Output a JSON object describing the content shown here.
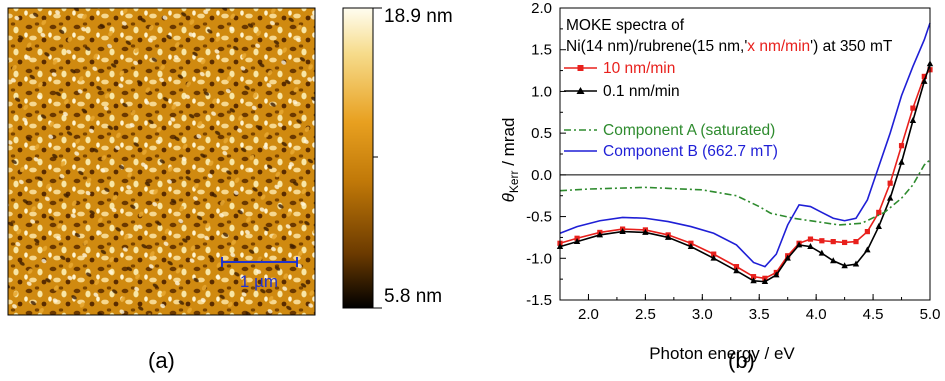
{
  "panel_a": {
    "label": "(a)",
    "scalebar_label": "1 µm",
    "colorbar": {
      "max_label": "18.9 nm",
      "min_label": "5.8 nm",
      "max_value": 18.9,
      "min_value": 5.8,
      "unit": "nm",
      "colors": [
        "#000000",
        "#6b3a00",
        "#c07808",
        "#e8a020",
        "#f6dc8c",
        "#fffdf0"
      ]
    }
  },
  "panel_b": {
    "label": "(b)"
  },
  "chart_data": {
    "type": "line",
    "xlabel": "Photon energy / eV",
    "ylabel_main": "θ",
    "ylabel_sub": "Kerr",
    "ylabel_rest": " / mrad",
    "xlim": [
      1.75,
      5.0
    ],
    "ylim": [
      -1.5,
      2.0
    ],
    "xticks": [
      "2.0",
      "2.5",
      "3.0",
      "3.5",
      "4.0",
      "4.5",
      "5.0"
    ],
    "yticks": [
      "-1.5",
      "-1.0",
      "-0.5",
      "0.0",
      "0.5",
      "1.0",
      "1.5",
      "2.0"
    ],
    "annotation_line1": "MOKE spectra of",
    "annotation_line2_a": "Ni(14 nm)/rubrene(15 nm,'",
    "annotation_line2_b": "x nm/min",
    "annotation_line2_c": "') at 350 mT",
    "annotation_accent": "#e8201c",
    "series": [
      {
        "name": "10  nm/min",
        "color": "#e8201c",
        "style": "solid",
        "marker": "square",
        "points": [
          [
            1.75,
            -0.82
          ],
          [
            1.9,
            -0.76
          ],
          [
            2.1,
            -0.69
          ],
          [
            2.3,
            -0.65
          ],
          [
            2.5,
            -0.66
          ],
          [
            2.7,
            -0.72
          ],
          [
            2.9,
            -0.82
          ],
          [
            3.1,
            -0.95
          ],
          [
            3.3,
            -1.1
          ],
          [
            3.45,
            -1.22
          ],
          [
            3.55,
            -1.24
          ],
          [
            3.65,
            -1.17
          ],
          [
            3.75,
            -0.97
          ],
          [
            3.85,
            -0.82
          ],
          [
            3.95,
            -0.77
          ],
          [
            4.05,
            -0.79
          ],
          [
            4.15,
            -0.8
          ],
          [
            4.25,
            -0.81
          ],
          [
            4.35,
            -0.8
          ],
          [
            4.45,
            -0.68
          ],
          [
            4.55,
            -0.45
          ],
          [
            4.65,
            -0.1
          ],
          [
            4.75,
            0.35
          ],
          [
            4.85,
            0.8
          ],
          [
            4.95,
            1.18
          ],
          [
            5.0,
            1.26
          ]
        ]
      },
      {
        "name": "0.1 nm/min",
        "color": "#000000",
        "style": "solid",
        "marker": "triangle",
        "points": [
          [
            1.75,
            -0.86
          ],
          [
            1.9,
            -0.8
          ],
          [
            2.1,
            -0.72
          ],
          [
            2.3,
            -0.68
          ],
          [
            2.5,
            -0.69
          ],
          [
            2.7,
            -0.75
          ],
          [
            2.9,
            -0.86
          ],
          [
            3.1,
            -1.0
          ],
          [
            3.3,
            -1.15
          ],
          [
            3.45,
            -1.27
          ],
          [
            3.55,
            -1.28
          ],
          [
            3.65,
            -1.2
          ],
          [
            3.75,
            -1.0
          ],
          [
            3.85,
            -0.84
          ],
          [
            3.95,
            -0.86
          ],
          [
            4.05,
            -0.94
          ],
          [
            4.15,
            -1.03
          ],
          [
            4.25,
            -1.09
          ],
          [
            4.35,
            -1.07
          ],
          [
            4.45,
            -0.9
          ],
          [
            4.55,
            -0.62
          ],
          [
            4.65,
            -0.28
          ],
          [
            4.75,
            0.15
          ],
          [
            4.85,
            0.65
          ],
          [
            4.95,
            1.12
          ],
          [
            5.0,
            1.33
          ]
        ]
      },
      {
        "name": "Component A (saturated)",
        "color": "#2e8b2e",
        "style": "dashdot",
        "marker": "none",
        "points": [
          [
            1.75,
            -0.19
          ],
          [
            2.0,
            -0.17
          ],
          [
            2.5,
            -0.15
          ],
          [
            3.0,
            -0.18
          ],
          [
            3.3,
            -0.25
          ],
          [
            3.5,
            -0.38
          ],
          [
            3.6,
            -0.46
          ],
          [
            3.8,
            -0.52
          ],
          [
            4.0,
            -0.56
          ],
          [
            4.2,
            -0.6
          ],
          [
            4.4,
            -0.58
          ],
          [
            4.6,
            -0.45
          ],
          [
            4.75,
            -0.28
          ],
          [
            4.85,
            -0.12
          ],
          [
            4.95,
            0.12
          ],
          [
            5.0,
            0.18
          ]
        ]
      },
      {
        "name": "Component B (662.7 mT)",
        "color": "#1f1fd6",
        "style": "solid",
        "marker": "none",
        "points": [
          [
            1.75,
            -0.7
          ],
          [
            1.9,
            -0.62
          ],
          [
            2.1,
            -0.55
          ],
          [
            2.3,
            -0.51
          ],
          [
            2.5,
            -0.52
          ],
          [
            2.7,
            -0.56
          ],
          [
            2.9,
            -0.62
          ],
          [
            3.1,
            -0.7
          ],
          [
            3.3,
            -0.84
          ],
          [
            3.45,
            -1.05
          ],
          [
            3.55,
            -1.1
          ],
          [
            3.65,
            -0.95
          ],
          [
            3.75,
            -0.6
          ],
          [
            3.85,
            -0.36
          ],
          [
            3.95,
            -0.38
          ],
          [
            4.05,
            -0.45
          ],
          [
            4.15,
            -0.52
          ],
          [
            4.25,
            -0.55
          ],
          [
            4.35,
            -0.52
          ],
          [
            4.45,
            -0.3
          ],
          [
            4.55,
            0.1
          ],
          [
            4.65,
            0.5
          ],
          [
            4.75,
            0.95
          ],
          [
            4.85,
            1.3
          ],
          [
            4.95,
            1.62
          ],
          [
            5.0,
            1.82
          ]
        ]
      }
    ],
    "zero_line": true
  }
}
